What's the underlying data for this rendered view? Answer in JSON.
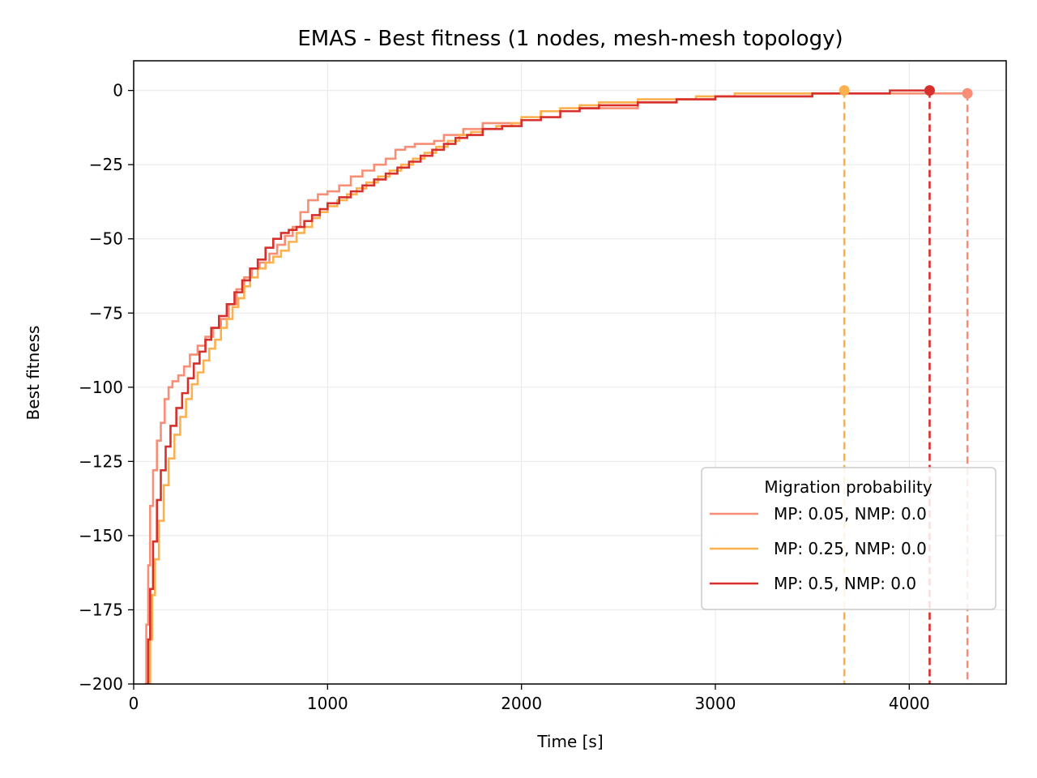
{
  "chart_data": {
    "type": "line",
    "title": "EMAS - Best fitness (1 nodes, mesh-mesh topology)",
    "xlabel": "Time [s]",
    "ylabel": "Best fitness",
    "xlim": [
      0,
      4500
    ],
    "ylim": [
      -200,
      10
    ],
    "xticks": [
      0,
      1000,
      2000,
      3000,
      4000
    ],
    "yticks": [
      0,
      -25,
      -50,
      -75,
      -100,
      -125,
      -150,
      -175,
      -200
    ],
    "xtick_labels": [
      "0",
      "1000",
      "2000",
      "3000",
      "4000"
    ],
    "ytick_labels": [
      "0",
      "−25",
      "−50",
      "−75",
      "−100",
      "−125",
      "−150",
      "−175",
      "−200"
    ],
    "grid": true,
    "line_style": "step",
    "legend": {
      "title": "Migration probability",
      "placement": "lower-right"
    },
    "series": [
      {
        "name": "MP: 0.05, NMP: 0.0",
        "color": "#f88e75",
        "end_marker": {
          "x": 4300,
          "y": -1
        },
        "points": [
          [
            60,
            -200
          ],
          [
            65,
            -180
          ],
          [
            75,
            -160
          ],
          [
            85,
            -140
          ],
          [
            100,
            -128
          ],
          [
            120,
            -118
          ],
          [
            140,
            -112
          ],
          [
            160,
            -104
          ],
          [
            180,
            -100
          ],
          [
            200,
            -98
          ],
          [
            230,
            -96
          ],
          [
            260,
            -93
          ],
          [
            290,
            -89
          ],
          [
            330,
            -86
          ],
          [
            370,
            -83
          ],
          [
            410,
            -80
          ],
          [
            450,
            -77
          ],
          [
            490,
            -72
          ],
          [
            530,
            -67
          ],
          [
            570,
            -63
          ],
          [
            610,
            -60
          ],
          [
            650,
            -58
          ],
          [
            700,
            -55
          ],
          [
            740,
            -52
          ],
          [
            780,
            -49
          ],
          [
            820,
            -46
          ],
          [
            860,
            -41
          ],
          [
            900,
            -37
          ],
          [
            950,
            -35
          ],
          [
            1000,
            -34
          ],
          [
            1060,
            -32
          ],
          [
            1120,
            -29
          ],
          [
            1180,
            -27
          ],
          [
            1240,
            -25
          ],
          [
            1300,
            -23
          ],
          [
            1350,
            -20
          ],
          [
            1400,
            -19
          ],
          [
            1450,
            -18
          ],
          [
            1550,
            -17
          ],
          [
            1600,
            -15
          ],
          [
            1700,
            -13
          ],
          [
            1800,
            -11
          ],
          [
            1900,
            -11
          ],
          [
            2000,
            -10
          ],
          [
            2100,
            -7
          ],
          [
            2300,
            -6
          ],
          [
            2400,
            -6
          ],
          [
            2450,
            -6
          ],
          [
            2600,
            -4
          ],
          [
            2800,
            -3
          ],
          [
            3000,
            -2
          ],
          [
            3300,
            -2
          ],
          [
            3500,
            -1
          ],
          [
            4000,
            -1
          ],
          [
            4300,
            -1
          ]
        ]
      },
      {
        "name": "MP: 0.25, NMP: 0.0",
        "color": "#fdb04e",
        "end_marker": {
          "x": 3665,
          "y": 0
        },
        "points": [
          [
            80,
            -200
          ],
          [
            85,
            -185
          ],
          [
            95,
            -170
          ],
          [
            110,
            -158
          ],
          [
            130,
            -145
          ],
          [
            155,
            -133
          ],
          [
            180,
            -124
          ],
          [
            210,
            -116
          ],
          [
            240,
            -110
          ],
          [
            270,
            -104
          ],
          [
            300,
            -99
          ],
          [
            330,
            -95
          ],
          [
            360,
            -91
          ],
          [
            390,
            -87
          ],
          [
            420,
            -84
          ],
          [
            450,
            -80
          ],
          [
            480,
            -77
          ],
          [
            510,
            -73
          ],
          [
            540,
            -70
          ],
          [
            570,
            -66
          ],
          [
            600,
            -63
          ],
          [
            640,
            -60
          ],
          [
            680,
            -58
          ],
          [
            720,
            -56
          ],
          [
            760,
            -54
          ],
          [
            800,
            -51
          ],
          [
            840,
            -48
          ],
          [
            880,
            -46
          ],
          [
            920,
            -43
          ],
          [
            960,
            -41
          ],
          [
            1000,
            -39
          ],
          [
            1050,
            -37
          ],
          [
            1100,
            -35
          ],
          [
            1150,
            -33
          ],
          [
            1200,
            -31
          ],
          [
            1260,
            -29
          ],
          [
            1320,
            -27
          ],
          [
            1380,
            -25
          ],
          [
            1440,
            -23
          ],
          [
            1500,
            -21
          ],
          [
            1560,
            -19
          ],
          [
            1620,
            -17
          ],
          [
            1680,
            -15
          ],
          [
            1740,
            -14
          ],
          [
            1800,
            -13
          ],
          [
            1870,
            -12
          ],
          [
            1950,
            -11
          ],
          [
            2000,
            -9
          ],
          [
            2100,
            -7
          ],
          [
            2200,
            -6
          ],
          [
            2300,
            -5
          ],
          [
            2400,
            -4
          ],
          [
            2600,
            -3
          ],
          [
            2800,
            -3
          ],
          [
            2900,
            -2
          ],
          [
            3100,
            -1
          ],
          [
            3400,
            -1
          ],
          [
            3665,
            0
          ]
        ]
      },
      {
        "name": "MP: 0.5, NMP: 0.0",
        "color": "#d7302c",
        "end_marker": {
          "x": 4105,
          "y": 0
        },
        "points": [
          [
            70,
            -200
          ],
          [
            75,
            -185
          ],
          [
            85,
            -168
          ],
          [
            100,
            -152
          ],
          [
            120,
            -138
          ],
          [
            140,
            -128
          ],
          [
            165,
            -120
          ],
          [
            190,
            -113
          ],
          [
            220,
            -107
          ],
          [
            250,
            -102
          ],
          [
            280,
            -97
          ],
          [
            310,
            -92
          ],
          [
            340,
            -88
          ],
          [
            370,
            -84
          ],
          [
            400,
            -80
          ],
          [
            440,
            -76
          ],
          [
            480,
            -72
          ],
          [
            520,
            -68
          ],
          [
            560,
            -64
          ],
          [
            600,
            -60
          ],
          [
            640,
            -57
          ],
          [
            680,
            -53
          ],
          [
            720,
            -50
          ],
          [
            760,
            -48
          ],
          [
            800,
            -47
          ],
          [
            840,
            -46
          ],
          [
            880,
            -44
          ],
          [
            920,
            -42
          ],
          [
            960,
            -40
          ],
          [
            1000,
            -38
          ],
          [
            1060,
            -36
          ],
          [
            1120,
            -34
          ],
          [
            1180,
            -32
          ],
          [
            1240,
            -30
          ],
          [
            1300,
            -28
          ],
          [
            1360,
            -26
          ],
          [
            1420,
            -24
          ],
          [
            1480,
            -22
          ],
          [
            1540,
            -20
          ],
          [
            1600,
            -18
          ],
          [
            1660,
            -16
          ],
          [
            1720,
            -15
          ],
          [
            1800,
            -13
          ],
          [
            1900,
            -12
          ],
          [
            2000,
            -10
          ],
          [
            2100,
            -9
          ],
          [
            2200,
            -7
          ],
          [
            2300,
            -6
          ],
          [
            2400,
            -5
          ],
          [
            2600,
            -4
          ],
          [
            2800,
            -3
          ],
          [
            3000,
            -2
          ],
          [
            3300,
            -2
          ],
          [
            3500,
            -1
          ],
          [
            3800,
            -1
          ],
          [
            3900,
            0
          ],
          [
            4105,
            0
          ]
        ]
      }
    ]
  }
}
